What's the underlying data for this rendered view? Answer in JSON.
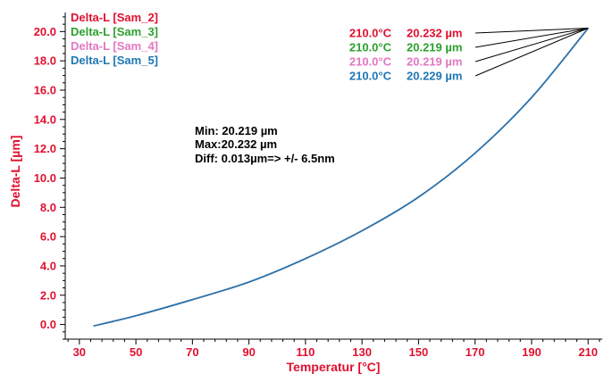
{
  "chart_data": {
    "type": "line",
    "xlabel": "Temperatur [°C]",
    "ylabel": "Delta-L [µm]",
    "xlim": [
      25,
      215
    ],
    "ylim": [
      -1,
      21.3
    ],
    "x_ticks": [
      30,
      50,
      70,
      90,
      110,
      130,
      150,
      170,
      190,
      210
    ],
    "x_tick_labels": [
      "30",
      "50",
      "70",
      "90",
      "110",
      "130",
      "150",
      "170",
      "190",
      "210"
    ],
    "y_ticks": [
      0,
      2,
      4,
      6,
      8,
      10,
      12,
      14,
      16,
      18,
      20
    ],
    "y_tick_labels": [
      "0.0",
      "2.0",
      "4.0",
      "6.0",
      "8.0",
      "10.0",
      "12.0",
      "14.0",
      "16.0",
      "18.0",
      "20.0"
    ],
    "legend_position": "top-left",
    "series": [
      {
        "name": "Delta-L [Sam_2]",
        "color": "#e0102f",
        "endpoint_label": {
          "temp": "210.0°C",
          "value": "20.232 µm"
        },
        "x": [
          35,
          50,
          70,
          90,
          110,
          130,
          150,
          170,
          190,
          210
        ],
        "y": [
          -0.1,
          0.6,
          1.7,
          2.9,
          4.5,
          6.4,
          8.7,
          11.7,
          15.5,
          20.232
        ]
      },
      {
        "name": "Delta-L [Sam_3]",
        "color": "#2ca02c",
        "endpoint_label": {
          "temp": "210.0°C",
          "value": "20.219 µm"
        },
        "x": [
          35,
          50,
          70,
          90,
          110,
          130,
          150,
          170,
          190,
          210
        ],
        "y": [
          -0.1,
          0.6,
          1.7,
          2.9,
          4.5,
          6.4,
          8.7,
          11.7,
          15.5,
          20.219
        ]
      },
      {
        "name": "Delta-L [Sam_4]",
        "color": "#e377c2",
        "endpoint_label": {
          "temp": "210.0°C",
          "value": "20.219 µm"
        },
        "x": [
          35,
          50,
          70,
          90,
          110,
          130,
          150,
          170,
          190,
          210
        ],
        "y": [
          -0.1,
          0.6,
          1.7,
          2.9,
          4.5,
          6.4,
          8.7,
          11.7,
          15.5,
          20.219
        ]
      },
      {
        "name": "Delta-L [Sam_5]",
        "color": "#1f77b4",
        "endpoint_label": {
          "temp": "210.0°C",
          "value": "20.229 µm"
        },
        "x": [
          35,
          50,
          70,
          90,
          110,
          130,
          150,
          170,
          190,
          210
        ],
        "y": [
          -0.1,
          0.6,
          1.7,
          2.9,
          4.5,
          6.4,
          8.7,
          11.7,
          15.5,
          20.229
        ]
      }
    ],
    "annotation": {
      "min": "Min: 20.219 µm",
      "max": "Max:20.232 µm",
      "diff": "Diff: 0.013µm=> +/- 6.5nm"
    }
  },
  "colors": {
    "axis_text": "#e0102f",
    "axis_line": "#000000",
    "annotation_text": "#000000"
  }
}
